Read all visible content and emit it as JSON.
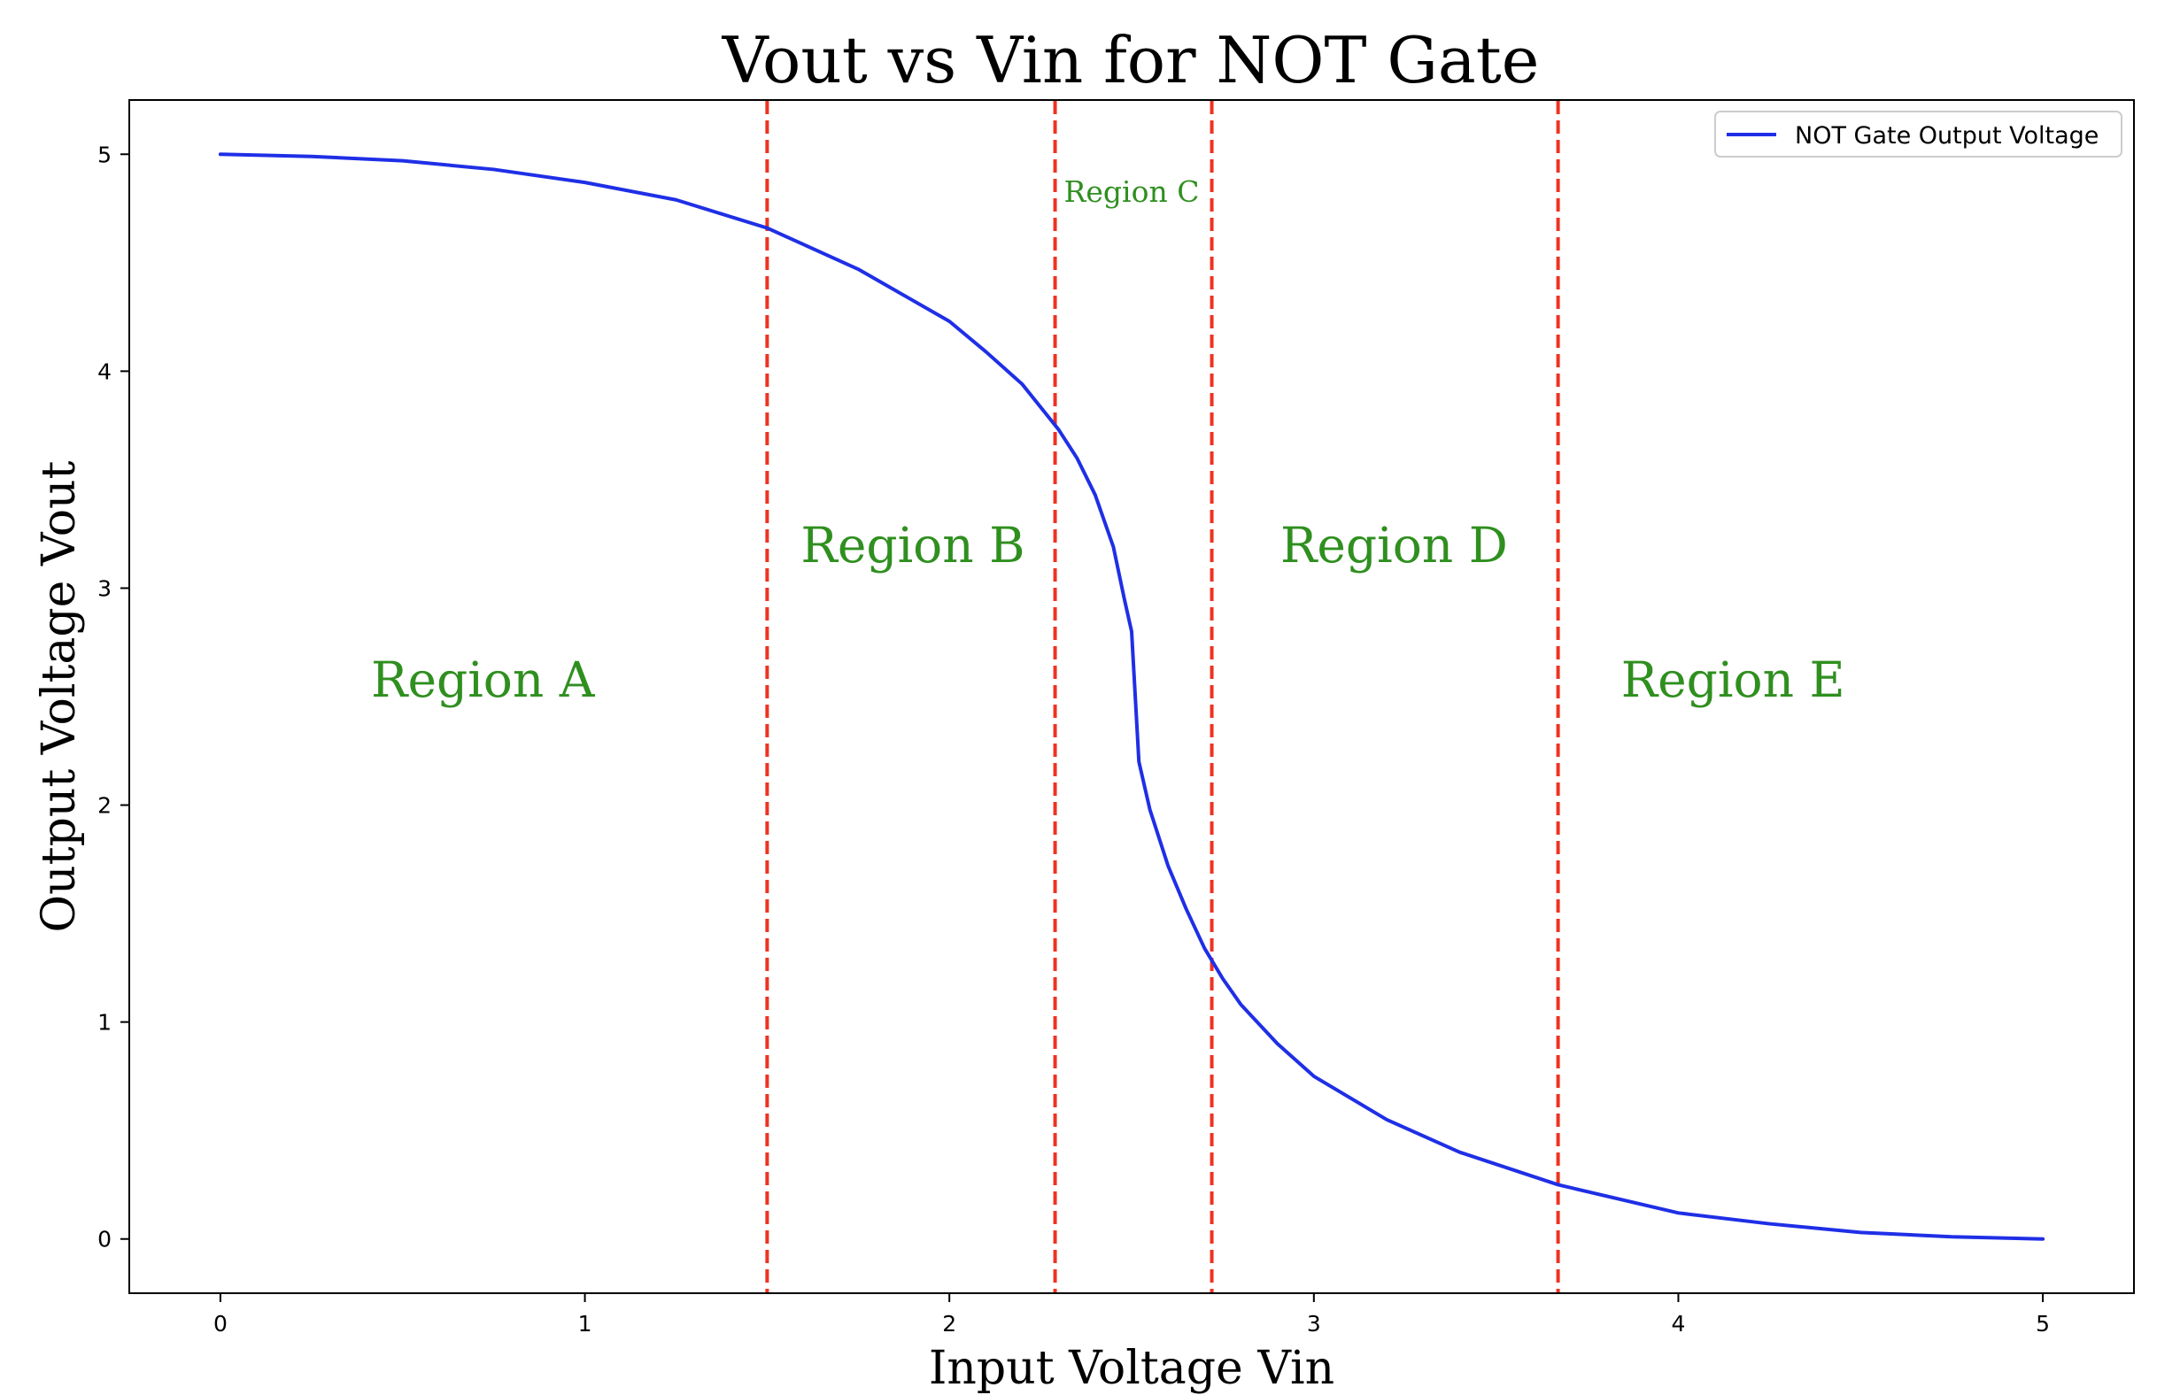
{
  "chart_data": {
    "type": "line",
    "title": "Vout vs Vin for NOT Gate",
    "xlabel": "Input Voltage Vin",
    "ylabel": "Output Voltage Vout",
    "xlim": [
      -0.25,
      5.25
    ],
    "ylim": [
      -0.25,
      5.25
    ],
    "x_ticks": [
      0,
      1,
      2,
      3,
      4,
      5
    ],
    "y_ticks": [
      0,
      1,
      2,
      3,
      4,
      5
    ],
    "x_tick_labels": [
      "0",
      "1",
      "2",
      "3",
      "4",
      "5"
    ],
    "y_tick_labels": [
      "0",
      "1",
      "2",
      "3",
      "4",
      "5"
    ],
    "grid": false,
    "legend": {
      "placement": "top-right",
      "entries": [
        "NOT Gate Output Voltage"
      ]
    },
    "series": [
      {
        "name": "NOT Gate Output Voltage",
        "color": "#1f2fe6",
        "x": [
          0,
          0.25,
          0.5,
          0.75,
          1.0,
          1.25,
          1.5,
          1.75,
          2.0,
          2.1,
          2.2,
          2.3,
          2.35,
          2.4,
          2.45,
          2.48,
          2.5,
          2.52,
          2.55,
          2.6,
          2.65,
          2.7,
          2.75,
          2.8,
          2.9,
          3.0,
          3.2,
          3.4,
          3.67,
          4.0,
          4.25,
          4.5,
          4.75,
          5.0
        ],
        "values": [
          5.0,
          4.99,
          4.97,
          4.93,
          4.87,
          4.79,
          4.66,
          4.47,
          4.23,
          4.09,
          3.94,
          3.73,
          3.6,
          3.43,
          3.19,
          2.95,
          2.8,
          2.2,
          1.98,
          1.72,
          1.52,
          1.34,
          1.2,
          1.08,
          0.9,
          0.75,
          0.55,
          0.4,
          0.25,
          0.12,
          0.07,
          0.03,
          0.01,
          0.0
        ]
      }
    ],
    "vertical_lines": {
      "color": "#ee3322",
      "style": "dashed",
      "x": [
        1.5,
        2.29,
        2.72,
        3.67
      ]
    },
    "annotations": [
      {
        "text": "Region A",
        "x": 0.72,
        "y": 2.5,
        "size": "large"
      },
      {
        "text": "Region B",
        "x": 1.9,
        "y": 3.12,
        "size": "large"
      },
      {
        "text": "Region C",
        "x": 2.5,
        "y": 4.78,
        "size": "small"
      },
      {
        "text": "Region D",
        "x": 3.22,
        "y": 3.12,
        "size": "large"
      },
      {
        "text": "Region E",
        "x": 4.15,
        "y": 2.5,
        "size": "large"
      }
    ]
  }
}
